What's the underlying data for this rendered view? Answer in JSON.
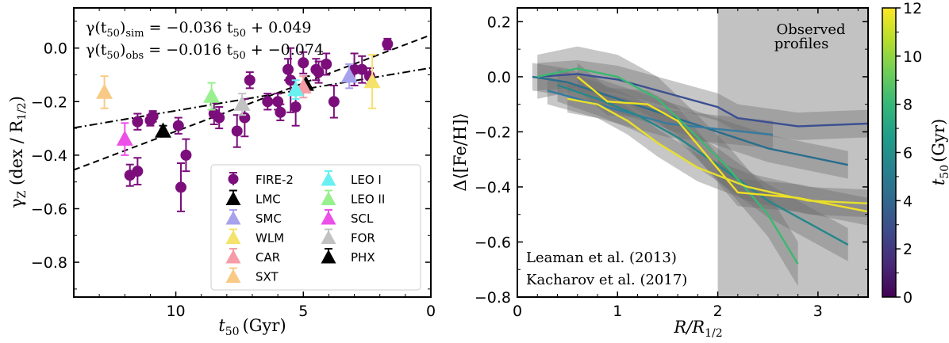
{
  "chart_data": [
    {
      "type": "scatter",
      "title": "",
      "xlabel": "t50 (Gyr)",
      "xlabel_main": "t",
      "xlabel_sub": "50",
      "xlabel_unit": "(Gyr)",
      "ylabel": "γz (dex / R1/2)",
      "xlim": [
        14,
        0
      ],
      "ylim": [
        -0.93,
        0.15
      ],
      "xticks": [
        10,
        5,
        0
      ],
      "yticks": [
        0.0,
        -0.2,
        -0.4,
        -0.6,
        -0.8
      ],
      "ytick_labels": [
        "0.0",
        "−0.2",
        "−0.4",
        "−0.6",
        "−0.8"
      ],
      "equations": [
        {
          "lhs_main": "γ(t",
          "lhs_sub": "50",
          "lhs_close": ")",
          "lhs_tag": "sim",
          "rhs_a": " = −0.036 t",
          "rhs_sub": "50",
          "rhs_b": " + 0.049",
          "slope": -0.036,
          "intercept": 0.049,
          "style": "dashed"
        },
        {
          "lhs_main": "γ(t",
          "lhs_sub": "50",
          "lhs_close": ")",
          "lhs_tag": "obs",
          "rhs_a": " = −0.016 t",
          "rhs_sub": "50",
          "rhs_b": " + −0.074",
          "slope": -0.016,
          "intercept": -0.074,
          "style": "dashdot"
        }
      ],
      "fire2": {
        "name": "FIRE-2",
        "color": "#7b0e7b",
        "points": [
          {
            "x": 11.8,
            "y": -0.475,
            "err": 0.04
          },
          {
            "x": 11.5,
            "y": -0.46,
            "err": 0.05
          },
          {
            "x": 11.5,
            "y": -0.275,
            "err": 0.03
          },
          {
            "x": 11.0,
            "y": -0.27,
            "err": 0.02
          },
          {
            "x": 10.9,
            "y": -0.255,
            "err": 0.02
          },
          {
            "x": 9.9,
            "y": -0.29,
            "err": 0.03
          },
          {
            "x": 9.6,
            "y": -0.4,
            "err": 0.06
          },
          {
            "x": 9.8,
            "y": -0.52,
            "err": 0.09
          },
          {
            "x": 8.5,
            "y": -0.245,
            "err": 0.04
          },
          {
            "x": 8.3,
            "y": -0.26,
            "err": 0.04
          },
          {
            "x": 7.3,
            "y": -0.26,
            "err": 0.07
          },
          {
            "x": 7.6,
            "y": -0.31,
            "err": 0.06
          },
          {
            "x": 7.1,
            "y": -0.12,
            "err": 0.03
          },
          {
            "x": 6.4,
            "y": -0.2,
            "err": 0.03
          },
          {
            "x": 6.0,
            "y": -0.2,
            "err": 0.03
          },
          {
            "x": 5.9,
            "y": -0.24,
            "err": 0.03
          },
          {
            "x": 5.6,
            "y": -0.08,
            "err": 0.04
          },
          {
            "x": 5.5,
            "y": -0.12,
            "err": 0.12
          },
          {
            "x": 5.0,
            "y": -0.055,
            "err": 0.04
          },
          {
            "x": 5.3,
            "y": -0.22,
            "err": 0.07
          },
          {
            "x": 4.5,
            "y": -0.08,
            "err": 0.04
          },
          {
            "x": 4.1,
            "y": -0.06,
            "err": 0.04
          },
          {
            "x": 3.8,
            "y": -0.2,
            "err": 0.06
          },
          {
            "x": 3.0,
            "y": -0.08,
            "err": 0.06
          },
          {
            "x": 2.7,
            "y": -0.08,
            "err": 0.05
          },
          {
            "x": 2.4,
            "y": -0.105,
            "err": 0.03
          },
          {
            "x": 1.7,
            "y": 0.015,
            "err": 0.02
          },
          {
            "x": 4.4,
            "y": -0.09,
            "err": 0.04
          }
        ]
      },
      "observed": [
        {
          "name": "LMC",
          "color": "#000000",
          "x": 4.9,
          "y": -0.135,
          "err": 0.03
        },
        {
          "name": "SMC",
          "color": "#a7a2ee",
          "x": 3.2,
          "y": -0.105,
          "err": 0.045
        },
        {
          "name": "WLM",
          "color": "#f4e26b",
          "x": 2.3,
          "y": -0.125,
          "err": 0.1
        },
        {
          "name": "CAR",
          "color": "#f59ca6",
          "x": 5.0,
          "y": -0.145,
          "err": 0.04
        },
        {
          "name": "SXT",
          "color": "#f8ca85",
          "x": 12.8,
          "y": -0.165,
          "err": 0.06
        },
        {
          "name": "LEO I",
          "color": "#69f0f0",
          "x": 5.3,
          "y": -0.155,
          "err": 0.035
        },
        {
          "name": "LEO II",
          "color": "#98f08e",
          "x": 8.6,
          "y": -0.18,
          "err": 0.05
        },
        {
          "name": "SCL",
          "color": "#ec50e7",
          "x": 12.0,
          "y": -0.34,
          "err": 0.06
        },
        {
          "name": "FOR",
          "color": "#c2c2c2",
          "x": 7.4,
          "y": -0.21,
          "err": 0.04
        },
        {
          "name": "PHX",
          "color": "#000000",
          "x": 10.5,
          "y": -0.31,
          "err": 0.02
        }
      ],
      "legend_left": [
        "FIRE-2",
        "LMC",
        "SMC",
        "WLM",
        "CAR",
        "SXT"
      ],
      "legend_right": [
        "LEO I",
        "LEO II",
        "SCL",
        "FOR",
        "PHX"
      ]
    },
    {
      "type": "line",
      "title": "",
      "xlabel": "R/R1/2",
      "ylabel": "Δ⟨[Fe/H]⟩",
      "xlim": [
        0,
        3.5
      ],
      "ylim": [
        -0.8,
        0.25
      ],
      "xticks": [
        0,
        1,
        2,
        3
      ],
      "yticks": [
        0.2,
        0.0,
        -0.2,
        -0.4,
        -0.6,
        -0.8
      ],
      "ytick_labels": [
        "0.2",
        "0.0",
        "−0.2",
        "−0.4",
        "−0.6",
        "−0.8"
      ],
      "observed_region": {
        "x_start": 2.0,
        "x_end": 3.5,
        "label_line1": "Observed",
        "label_line2": "profiles"
      },
      "references": [
        "Leaman et al. (2013)",
        "Kacharov et al. (2017)"
      ],
      "series": [
        {
          "color": "#3b4f91",
          "x": [
            0.2,
            0.6,
            1.0,
            1.5,
            2.0,
            2.2,
            2.8,
            3.5
          ],
          "y": [
            0.0,
            0.01,
            -0.01,
            -0.06,
            -0.11,
            -0.15,
            -0.18,
            -0.17
          ],
          "band": 0.05
        },
        {
          "color": "#2a6e8e",
          "x": [
            0.15,
            0.5,
            1.0,
            1.5,
            2.0,
            2.5,
            3.3
          ],
          "y": [
            0.0,
            -0.02,
            -0.08,
            -0.14,
            -0.2,
            -0.26,
            -0.32
          ],
          "band": 0.05
        },
        {
          "color": "#357ba2",
          "x": [
            0.3,
            0.7,
            1.1,
            1.5,
            2.0,
            2.55
          ],
          "y": [
            -0.05,
            -0.09,
            -0.13,
            -0.17,
            -0.19,
            -0.21
          ],
          "band": 0.05
        },
        {
          "color": "#24878a",
          "x": [
            0.4,
            0.8,
            1.2,
            1.6,
            2.0,
            2.5,
            3.3
          ],
          "y": [
            -0.03,
            -0.08,
            -0.14,
            -0.22,
            -0.32,
            -0.45,
            -0.61
          ],
          "band": 0.06
        },
        {
          "color": "#3bb872",
          "x": [
            0.2,
            0.6,
            1.0,
            1.4,
            1.8,
            2.1,
            2.5,
            2.8
          ],
          "y": [
            0.0,
            0.03,
            0.0,
            -0.08,
            -0.22,
            -0.33,
            -0.5,
            -0.68
          ],
          "band": 0.08
        },
        {
          "color": "#f1e020",
          "x": [
            0.6,
            0.9,
            1.3,
            1.6,
            1.9,
            2.2,
            2.8,
            3.5
          ],
          "y": [
            0.0,
            -0.09,
            -0.1,
            -0.16,
            -0.29,
            -0.42,
            -0.44,
            -0.49
          ],
          "band": 0.05
        },
        {
          "color": "#e8e02b",
          "x": [
            0.5,
            0.8,
            1.1,
            1.4,
            1.8,
            2.3,
            2.9,
            3.5
          ],
          "y": [
            -0.08,
            -0.1,
            -0.16,
            -0.24,
            -0.33,
            -0.4,
            -0.45,
            -0.46
          ],
          "band": 0.05
        }
      ]
    }
  ],
  "colorbar": {
    "label_main": "t",
    "label_sub": "50",
    "label_unit": "(Gyr)",
    "range": [
      0,
      12
    ],
    "ticks": [
      0,
      2,
      4,
      6,
      8,
      10,
      12
    ],
    "colormap": [
      "#440154",
      "#482878",
      "#3e4989",
      "#31688e",
      "#26828e",
      "#1f9e89",
      "#35b779",
      "#6ece58",
      "#b5de2b",
      "#fde725"
    ]
  }
}
